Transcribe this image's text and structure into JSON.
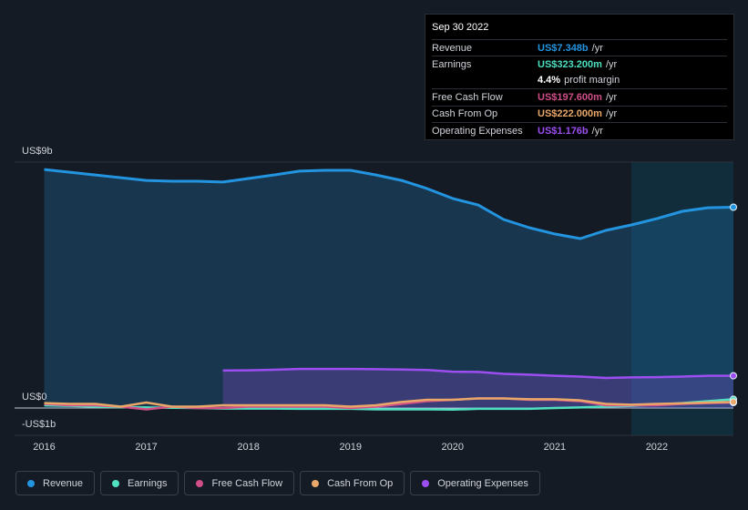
{
  "chart_data": {
    "type": "line",
    "x": [
      2016,
      2016.25,
      2016.5,
      2016.75,
      2017,
      2017.25,
      2017.5,
      2017.75,
      2018,
      2018.25,
      2018.5,
      2018.75,
      2019,
      2019.25,
      2019.5,
      2019.75,
      2020,
      2020.25,
      2020.5,
      2020.75,
      2021,
      2021.25,
      2021.5,
      2021.75,
      2022,
      2022.25,
      2022.5,
      2022.75
    ],
    "series": [
      {
        "name": "Revenue",
        "color": "#2394df",
        "area": true,
        "values": [
          8.73,
          8.63,
          8.53,
          8.43,
          8.33,
          8.3,
          8.3,
          8.27,
          8.4,
          8.53,
          8.67,
          8.7,
          8.7,
          8.53,
          8.33,
          8.03,
          7.67,
          7.43,
          6.9,
          6.6,
          6.37,
          6.2,
          6.5,
          6.7,
          6.93,
          7.2,
          7.33,
          7.35
        ]
      },
      {
        "name": "Earnings",
        "color": "#4fe0c0",
        "area": false,
        "values": [
          0.1,
          0.08,
          0.05,
          0.03,
          0.02,
          0.01,
          0.0,
          -0.02,
          -0.02,
          -0.02,
          -0.03,
          -0.03,
          -0.03,
          -0.05,
          -0.05,
          -0.05,
          -0.06,
          -0.03,
          -0.03,
          -0.03,
          0.0,
          0.02,
          0.05,
          0.08,
          0.12,
          0.18,
          0.25,
          0.32
        ]
      },
      {
        "name": "Free Cash Flow",
        "color": "#d04f88",
        "area": false,
        "values": [
          0.15,
          0.1,
          0.1,
          0.05,
          -0.05,
          0.05,
          0.0,
          0.0,
          0.05,
          0.05,
          0.05,
          0.05,
          0.0,
          0.05,
          0.15,
          0.25,
          0.3,
          0.35,
          0.35,
          0.3,
          0.3,
          0.25,
          0.1,
          0.1,
          0.1,
          0.15,
          0.18,
          0.2
        ]
      },
      {
        "name": "Cash From Op",
        "color": "#e9a86a",
        "area": false,
        "values": [
          0.18,
          0.15,
          0.15,
          0.05,
          0.2,
          0.05,
          0.05,
          0.1,
          0.1,
          0.1,
          0.1,
          0.1,
          0.05,
          0.1,
          0.22,
          0.3,
          0.3,
          0.35,
          0.35,
          0.32,
          0.32,
          0.28,
          0.15,
          0.12,
          0.15,
          0.17,
          0.2,
          0.22
        ]
      },
      {
        "name": "Operating Expenses",
        "color": "#9d4ef0",
        "area": true,
        "values": [
          null,
          null,
          null,
          null,
          null,
          null,
          null,
          1.37,
          1.38,
          1.4,
          1.43,
          1.43,
          1.43,
          1.42,
          1.41,
          1.39,
          1.33,
          1.32,
          1.25,
          1.22,
          1.18,
          1.15,
          1.1,
          1.12,
          1.13,
          1.15,
          1.18,
          1.18
        ]
      }
    ],
    "xlim": [
      2015.71,
      2022.75
    ],
    "xticks": [
      2016,
      2017,
      2018,
      2019,
      2020,
      2021,
      2022
    ],
    "ylim": [
      -1,
      9
    ],
    "yticks": [
      {
        "value": 9,
        "label": "US$9b"
      },
      {
        "value": 0,
        "label": "US$0"
      },
      {
        "value": -1,
        "label": "-US$1b"
      }
    ],
    "tooltip": {
      "date": "Sep 30 2022",
      "rows": [
        {
          "label": "Revenue",
          "value": "US$7.348b",
          "suffix": "/yr"
        },
        {
          "label": "Earnings",
          "value": "US$323.200m",
          "suffix": "/yr"
        },
        {
          "label": null,
          "value": "4.4%",
          "suffix": "profit margin"
        },
        {
          "label": "Free Cash Flow",
          "value": "US$197.600m",
          "suffix": "/yr"
        },
        {
          "label": "Cash From Op",
          "value": "US$222.000m",
          "suffix": "/yr"
        },
        {
          "label": "Operating Expenses",
          "value": "US$1.176b",
          "suffix": "/yr"
        }
      ]
    }
  }
}
